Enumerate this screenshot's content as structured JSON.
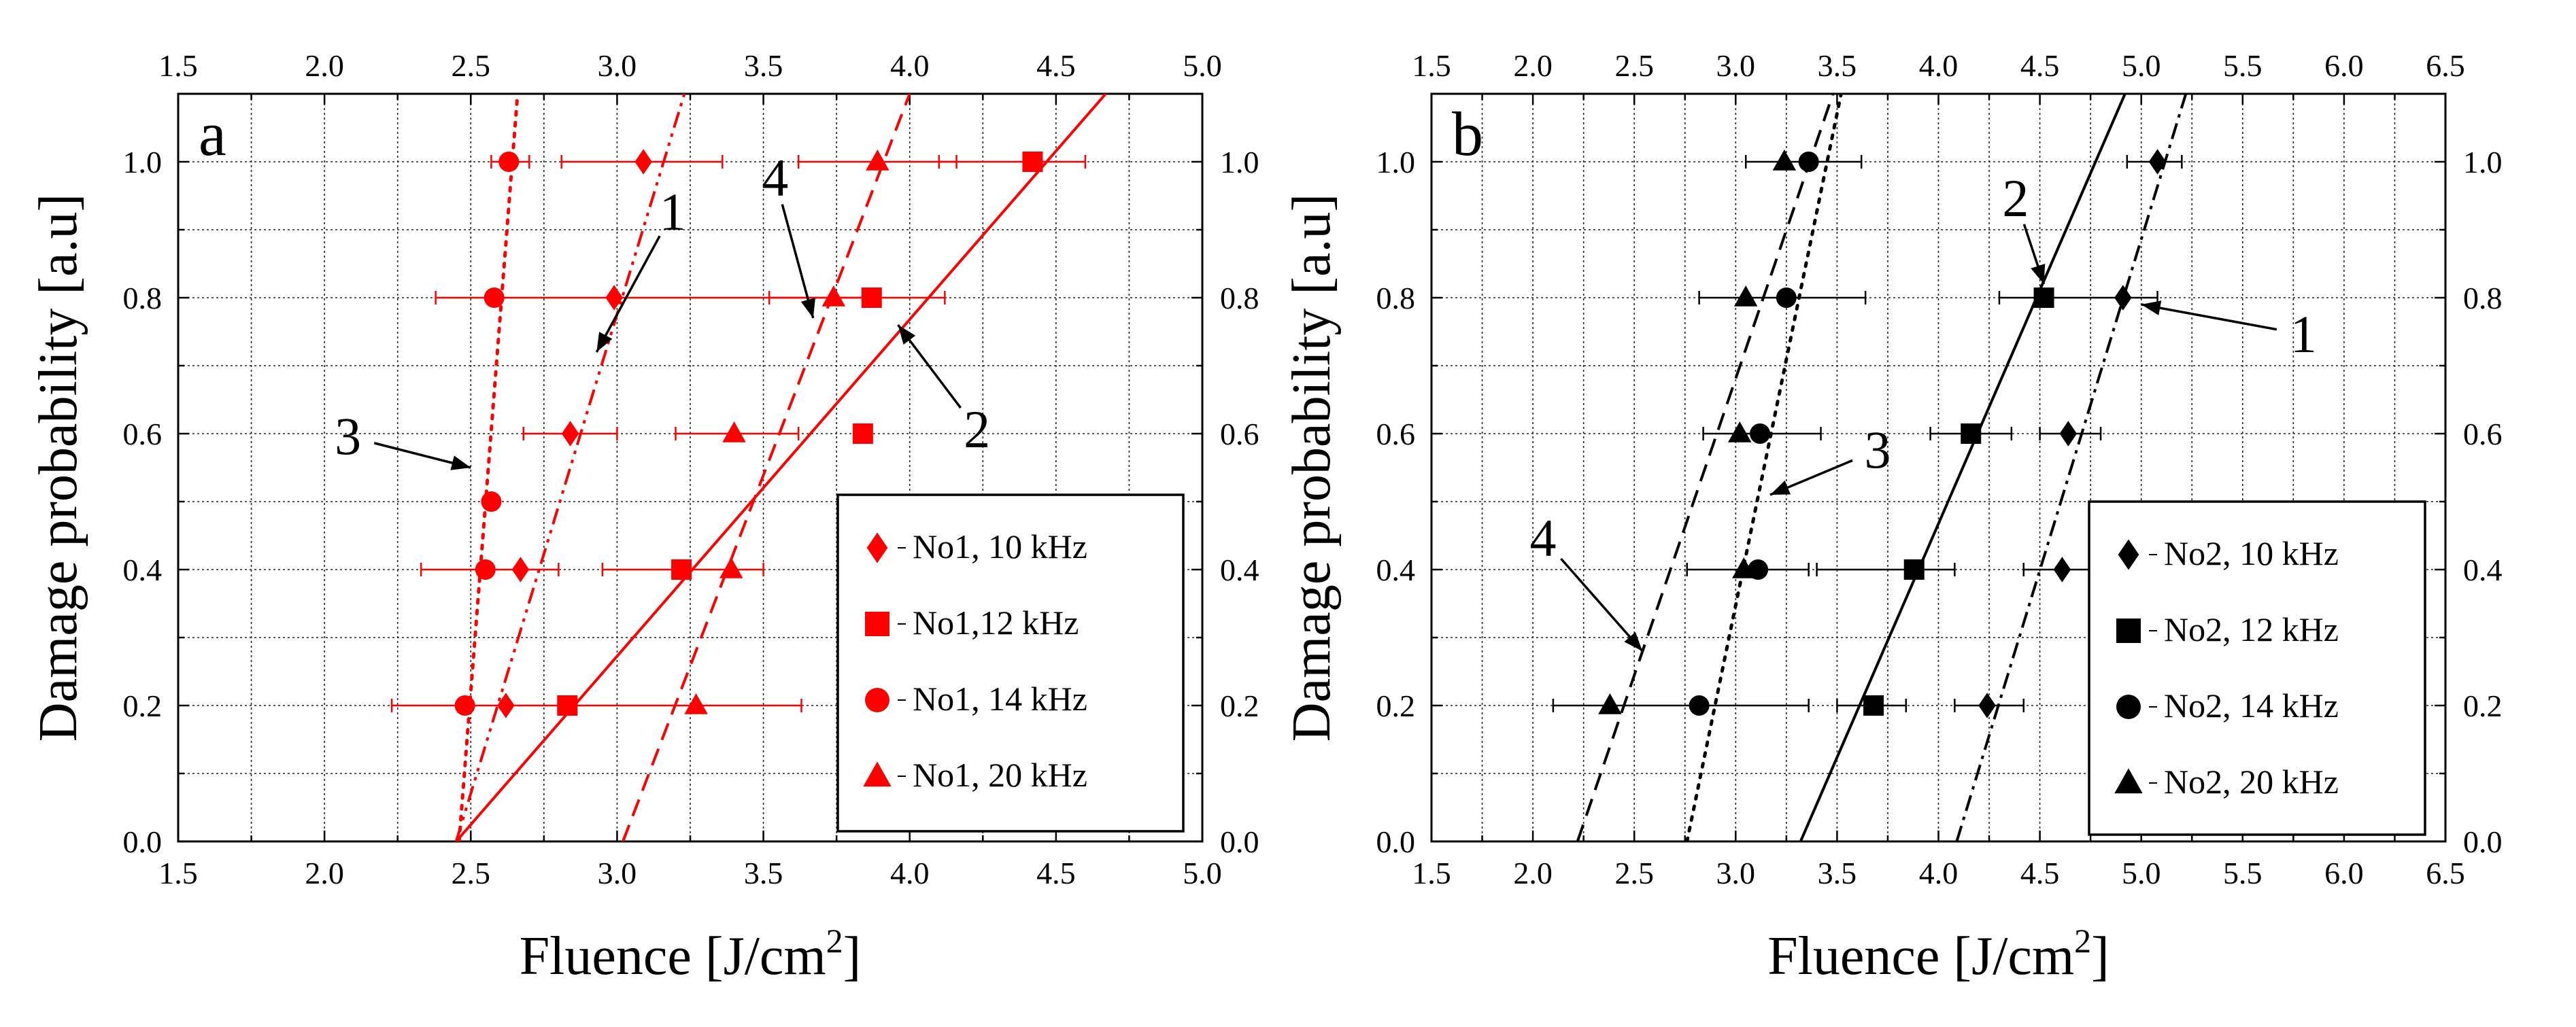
{
  "chart_data": [
    {
      "panel_label": "a",
      "type": "scatter",
      "color": "#ff0000",
      "xlabel": "Fluence [J/cm",
      "xlabel_sup": "2",
      "xlabel_close": "]",
      "ylabel": "Damage probability [a.u]",
      "xlim": [
        1.5,
        5.0
      ],
      "ylim": [
        0.0,
        1.1
      ],
      "xticks": [
        "1.5",
        "2.0",
        "2.5",
        "3.0",
        "3.5",
        "4.0",
        "4.5",
        "5.0"
      ],
      "yticks": [
        "0.0",
        "0.2",
        "0.4",
        "0.6",
        "0.8",
        "1.0"
      ],
      "grid": true,
      "legend_position": "bottom-right",
      "series": [
        {
          "name": "No1, 10 kHz",
          "marker": "diamond",
          "points": [
            [
              2.62,
              0.2
            ],
            [
              2.67,
              0.4
            ],
            [
              2.84,
              0.6
            ],
            [
              2.99,
              0.8
            ],
            [
              3.09,
              1.0
            ]
          ]
        },
        {
          "name": "No1,12 kHz",
          "marker": "square",
          "points": [
            [
              2.83,
              0.2
            ],
            [
              3.22,
              0.4
            ],
            [
              3.84,
              0.6
            ],
            [
              3.87,
              0.8
            ],
            [
              4.42,
              1.0
            ]
          ]
        },
        {
          "name": "No1, 14 kHz",
          "marker": "circle",
          "points": [
            [
              2.48,
              0.2
            ],
            [
              2.55,
              0.4
            ],
            [
              2.57,
              0.5
            ],
            [
              2.58,
              0.8
            ],
            [
              2.63,
              1.0
            ]
          ]
        },
        {
          "name": "No1, 20 kHz",
          "marker": "triangle",
          "points": [
            [
              3.27,
              0.2
            ],
            [
              3.39,
              0.4
            ],
            [
              3.4,
              0.6
            ],
            [
              3.74,
              0.8
            ],
            [
              3.89,
              1.0
            ]
          ]
        }
      ],
      "errorbars": [
        {
          "y": 1.0,
          "ranges": [
            [
              2.57,
              2.7
            ],
            [
              2.81,
              3.36
            ],
            [
              3.62,
              4.16
            ],
            [
              4.1,
              4.6
            ]
          ]
        },
        {
          "y": 0.8,
          "ranges": [
            [
              2.38,
              3.9
            ],
            [
              3.52,
              4.12
            ]
          ]
        },
        {
          "y": 0.6,
          "ranges": [
            [
              2.68,
              3.0
            ],
            [
              3.2,
              3.62
            ]
          ]
        },
        {
          "y": 0.4,
          "ranges": [
            [
              2.33,
              2.8
            ],
            [
              2.95,
              3.5
            ]
          ]
        },
        {
          "y": 0.2,
          "ranges": [
            [
              2.23,
              3.63
            ]
          ]
        }
      ],
      "fit_lines": [
        {
          "label": "1",
          "style": "dash-dot-dot",
          "from": [
            2.45,
            0.0
          ],
          "to": [
            3.23,
            1.1
          ]
        },
        {
          "label": "2",
          "style": "solid",
          "from": [
            2.45,
            0.0
          ],
          "to": [
            4.67,
            1.1
          ]
        },
        {
          "label": "3",
          "style": "dotted",
          "from": [
            2.46,
            0.0
          ],
          "to": [
            2.66,
            1.1
          ]
        },
        {
          "label": "4",
          "style": "dashed",
          "from": [
            3.02,
            0.0
          ],
          "to": [
            4.0,
            1.1
          ]
        }
      ],
      "annotations": [
        {
          "text": "1",
          "label_at": [
            3.19,
            0.9
          ],
          "arrow_to": [
            2.93,
            0.72
          ]
        },
        {
          "text": "4",
          "label_at": [
            3.54,
            0.95
          ],
          "arrow_to": [
            3.67,
            0.77
          ]
        },
        {
          "text": "2",
          "label_at": [
            4.23,
            0.58
          ],
          "arrow_to": [
            3.96,
            0.76
          ]
        },
        {
          "text": "3",
          "label_at": [
            2.08,
            0.57
          ],
          "arrow_to": [
            2.5,
            0.55
          ]
        }
      ]
    },
    {
      "panel_label": "b",
      "type": "scatter",
      "color": "#000000",
      "xlabel": "Fluence [J/cm",
      "xlabel_sup": "2",
      "xlabel_close": "]",
      "ylabel": "Damage probability [a.u]",
      "xlim": [
        1.5,
        6.5
      ],
      "ylim": [
        0.0,
        1.1
      ],
      "xticks": [
        "1.5",
        "2.0",
        "2.5",
        "3.0",
        "3.5",
        "4.0",
        "4.5",
        "5.0",
        "5.5",
        "6.0",
        "6.5"
      ],
      "yticks": [
        "0.0",
        "0.2",
        "0.4",
        "0.6",
        "0.8",
        "1.0"
      ],
      "grid": true,
      "legend_position": "bottom-right",
      "series": [
        {
          "name": "No2, 10 kHz",
          "marker": "diamond",
          "points": [
            [
              4.24,
              0.2
            ],
            [
              4.61,
              0.4
            ],
            [
              4.64,
              0.6
            ],
            [
              4.91,
              0.8
            ],
            [
              5.08,
              1.0
            ]
          ]
        },
        {
          "name": "No2, 12 kHz",
          "marker": "square",
          "points": [
            [
              3.68,
              0.2
            ],
            [
              3.88,
              0.4
            ],
            [
              4.16,
              0.6
            ],
            [
              4.52,
              0.8
            ]
          ]
        },
        {
          "name": "No2, 14 kHz",
          "marker": "circle",
          "points": [
            [
              2.82,
              0.2
            ],
            [
              3.11,
              0.4
            ],
            [
              3.12,
              0.6
            ],
            [
              3.25,
              0.8
            ],
            [
              3.36,
              1.0
            ]
          ]
        },
        {
          "name": "No2, 20 kHz",
          "marker": "triangle",
          "points": [
            [
              2.38,
              0.2
            ],
            [
              3.04,
              0.4
            ],
            [
              3.02,
              0.6
            ],
            [
              3.05,
              0.8
            ],
            [
              3.24,
              1.0
            ]
          ]
        }
      ],
      "errorbars": [
        {
          "y": 1.0,
          "ranges": [
            [
              3.05,
              3.62
            ],
            [
              4.93,
              5.2
            ]
          ]
        },
        {
          "y": 0.8,
          "ranges": [
            [
              2.82,
              3.64
            ],
            [
              4.3,
              5.08
            ]
          ]
        },
        {
          "y": 0.6,
          "ranges": [
            [
              2.84,
              3.42
            ],
            [
              3.96,
              4.36
            ],
            [
              4.5,
              4.8
            ]
          ]
        },
        {
          "y": 0.4,
          "ranges": [
            [
              2.76,
              3.36
            ],
            [
              3.4,
              4.08
            ],
            [
              4.42,
              4.82
            ]
          ]
        },
        {
          "y": 0.2,
          "ranges": [
            [
              2.1,
              3.36
            ],
            [
              3.5,
              3.84
            ],
            [
              4.08,
              4.42
            ]
          ]
        }
      ],
      "fit_lines": [
        {
          "label": "1",
          "style": "dash-dot",
          "from": [
            4.09,
            0.0
          ],
          "to": [
            5.22,
            1.1
          ]
        },
        {
          "label": "2",
          "style": "solid",
          "from": [
            3.32,
            0.0
          ],
          "to": [
            4.92,
            1.1
          ]
        },
        {
          "label": "3",
          "style": "dotted",
          "from": [
            2.76,
            0.0
          ],
          "to": [
            3.52,
            1.1
          ]
        },
        {
          "label": "4",
          "style": "dashed",
          "from": [
            2.22,
            0.0
          ],
          "to": [
            3.48,
            1.1
          ]
        }
      ],
      "annotations": [
        {
          "text": "1",
          "label_at": [
            5.8,
            0.72
          ],
          "arrow_to": [
            5.0,
            0.79
          ]
        },
        {
          "text": "2",
          "label_at": [
            4.38,
            0.92
          ],
          "arrow_to": [
            4.52,
            0.82
          ]
        },
        {
          "text": "3",
          "label_at": [
            3.7,
            0.55
          ],
          "arrow_to": [
            3.17,
            0.51
          ]
        },
        {
          "text": "4",
          "label_at": [
            2.05,
            0.42
          ],
          "arrow_to": [
            2.54,
            0.28
          ]
        }
      ]
    }
  ]
}
